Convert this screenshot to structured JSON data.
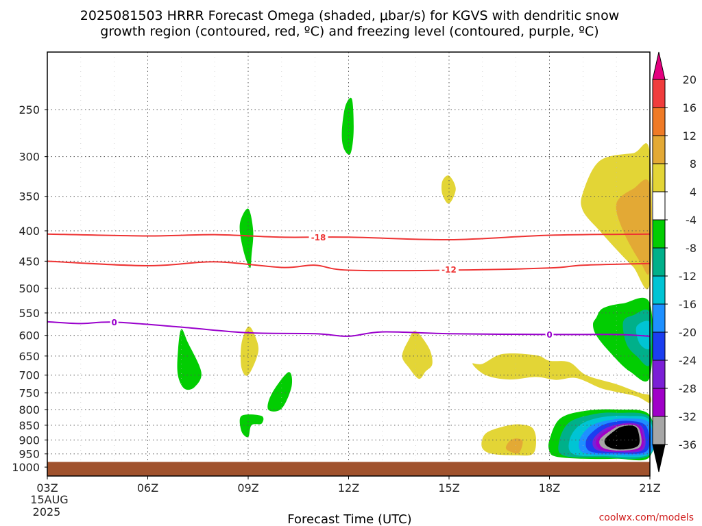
{
  "chart_data": {
    "type": "contour",
    "title_line1": "2025081503 HRRR Forecast Omega (shaded, μbar/s) for KGVS with dendritic snow",
    "title_line2": "growth region (contoured, red, ºC) and freezing level (contoured, purple, ºC)",
    "xlabel": "Forecast Time (UTC)",
    "x_ticks": [
      "03Z",
      "06Z",
      "09Z",
      "12Z",
      "15Z",
      "18Z",
      "21Z"
    ],
    "x_hours": [
      3,
      6,
      9,
      12,
      15,
      18,
      21
    ],
    "xlim_hours": [
      3,
      21
    ],
    "date_line1": "15AUG",
    "date_line2": "2025",
    "y_ticks": [
      250,
      300,
      350,
      400,
      450,
      500,
      550,
      600,
      650,
      700,
      750,
      800,
      850,
      900,
      950,
      1000
    ],
    "ylim_hpa": [
      1035,
      200
    ],
    "y_scale": "log",
    "ground_hpa": 980,
    "colorbar": {
      "labels": [
        "20",
        "16",
        "12",
        "8",
        "4",
        "-4",
        "-8",
        "-12",
        "-16",
        "-20",
        "-24",
        "-28",
        "-32",
        "-36"
      ],
      "colors": [
        "#e4007f",
        "#f03c3c",
        "#ef7a26",
        "#e3a935",
        "#e3d536",
        "#ffffff",
        "#02cd02",
        "#00b08a",
        "#00c4d4",
        "#1e90ff",
        "#1b3ef0",
        "#7b1fd6",
        "#a000c8",
        "#a6a6a6",
        "#000000"
      ]
    },
    "isotherms": [
      {
        "label": "-18",
        "color": "#ee3333",
        "points": [
          [
            3,
            405
          ],
          [
            6,
            408
          ],
          [
            8,
            406
          ],
          [
            10,
            410
          ],
          [
            12,
            410
          ],
          [
            15,
            414
          ],
          [
            18,
            407
          ],
          [
            21,
            405
          ]
        ],
        "label_at": [
          11.1,
          410
        ]
      },
      {
        "label": "-12",
        "color": "#ee3333",
        "points": [
          [
            3,
            450
          ],
          [
            6,
            458
          ],
          [
            8,
            451
          ],
          [
            10,
            461
          ],
          [
            11,
            457
          ],
          [
            12,
            466
          ],
          [
            15,
            466
          ],
          [
            18,
            462
          ],
          [
            19,
            457
          ],
          [
            21,
            454
          ]
        ],
        "label_at": [
          15,
          465
        ]
      },
      {
        "label": "0",
        "color": "#9900cc",
        "points": [
          [
            3,
            569
          ],
          [
            4,
            573
          ],
          [
            5,
            570
          ],
          [
            7,
            581
          ],
          [
            9,
            594
          ],
          [
            11,
            596
          ],
          [
            12,
            602
          ],
          [
            13,
            592
          ],
          [
            15,
            596
          ],
          [
            18,
            598
          ],
          [
            20,
            598
          ],
          [
            21,
            602
          ]
        ],
        "label_at": [
          5,
          570
        ]
      },
      {
        "label": "0",
        "color": "#9900cc",
        "points": [],
        "label_at": [
          18,
          598
        ]
      }
    ],
    "omega_regions": [
      {
        "value_range": [
          -8,
          -4
        ],
        "color": "#02cd02",
        "points": [
          [
            11.8,
            272
          ],
          [
            11.9,
            247
          ],
          [
            12.1,
            240
          ],
          [
            12.15,
            272
          ],
          [
            12.05,
            297
          ],
          [
            11.85,
            290
          ]
        ]
      },
      {
        "value_range": [
          -8,
          -4
        ],
        "color": "#02cd02",
        "points": [
          [
            8.75,
            390
          ],
          [
            9.0,
            367
          ],
          [
            9.15,
            400
          ],
          [
            9.1,
            440
          ],
          [
            9.05,
            462
          ],
          [
            8.85,
            430
          ]
        ]
      },
      {
        "value_range": [
          -8,
          -4
        ],
        "color": "#02cd02",
        "points": [
          [
            6.9,
            640
          ],
          [
            7.0,
            586
          ],
          [
            7.2,
            617
          ],
          [
            7.6,
            692
          ],
          [
            7.4,
            733
          ],
          [
            7.1,
            738
          ],
          [
            6.9,
            700
          ]
        ]
      },
      {
        "value_range": [
          -8,
          -4
        ],
        "color": "#02cd02",
        "points": [
          [
            9.6,
            800
          ],
          [
            9.7,
            753
          ],
          [
            10.2,
            692
          ],
          [
            10.3,
            730
          ],
          [
            10.0,
            797
          ]
        ]
      },
      {
        "value_range": [
          -8,
          -4
        ],
        "color": "#02cd02",
        "points": [
          [
            8.8,
            820
          ],
          [
            9.4,
            820
          ],
          [
            9.4,
            845
          ],
          [
            9.1,
            850
          ],
          [
            9.0,
            890
          ],
          [
            8.8,
            870
          ]
        ]
      },
      {
        "value_range": [
          4,
          8
        ],
        "color": "#e3d536",
        "points": [
          [
            8.8,
            620
          ],
          [
            9.0,
            580
          ],
          [
            9.2,
            600
          ],
          [
            9.3,
            640
          ],
          [
            9.0,
            700
          ],
          [
            8.8,
            680
          ]
        ]
      },
      {
        "value_range": [
          4,
          8
        ],
        "color": "#e3d536",
        "points": [
          [
            14.0,
            590
          ],
          [
            14.4,
            630
          ],
          [
            14.5,
            670
          ],
          [
            14.3,
            690
          ],
          [
            14.1,
            710
          ],
          [
            13.8,
            680
          ],
          [
            13.6,
            650
          ],
          [
            13.8,
            610
          ]
        ]
      },
      {
        "value_range": [
          4,
          8
        ],
        "color": "#e3d536",
        "points": [
          [
            14.8,
            330
          ],
          [
            15.0,
            323
          ],
          [
            15.2,
            340
          ],
          [
            15.0,
            360
          ],
          [
            14.8,
            347
          ]
        ]
      },
      {
        "value_range": [
          4,
          8
        ],
        "color": "#e3d536",
        "points": [
          [
            16.0,
            670
          ],
          [
            16.6,
            645
          ],
          [
            17.6,
            648
          ],
          [
            18.0,
            662
          ],
          [
            18.6,
            666
          ],
          [
            19.1,
            700
          ],
          [
            20.0,
            725
          ],
          [
            20.7,
            750
          ],
          [
            21.0,
            757
          ],
          [
            21.0,
            780
          ],
          [
            20.6,
            760
          ],
          [
            19.9,
            745
          ],
          [
            19.5,
            735
          ],
          [
            18.8,
            708
          ],
          [
            18.2,
            713
          ],
          [
            17.6,
            705
          ],
          [
            16.8,
            712
          ],
          [
            16.1,
            700
          ],
          [
            15.7,
            670
          ]
        ]
      },
      {
        "value_range": [
          4,
          8
        ],
        "color": "#e3d536",
        "points": [
          [
            16.2,
            870
          ],
          [
            16.8,
            850
          ],
          [
            17.2,
            848
          ],
          [
            17.5,
            860
          ],
          [
            17.6,
            900
          ],
          [
            17.5,
            950
          ],
          [
            17.0,
            955
          ],
          [
            16.3,
            950
          ],
          [
            16.0,
            930
          ],
          [
            16.0,
            895
          ]
        ]
      },
      {
        "value_range": [
          8,
          12
        ],
        "color": "#e3a935",
        "points": [
          [
            16.8,
            905
          ],
          [
            17.0,
            895
          ],
          [
            17.2,
            905
          ],
          [
            17.1,
            945
          ],
          [
            16.9,
            945
          ],
          [
            16.7,
            930
          ]
        ]
      },
      {
        "value_range": [
          4,
          8
        ],
        "color": "#e3d536",
        "points": [
          [
            19.0,
            345
          ],
          [
            19.5,
            305
          ],
          [
            20.5,
            296
          ],
          [
            21.0,
            296
          ],
          [
            21.0,
            490
          ],
          [
            20.5,
            460
          ],
          [
            20.0,
            430
          ],
          [
            19.5,
            400
          ],
          [
            19.0,
            370
          ]
        ]
      },
      {
        "value_range": [
          8,
          12
        ],
        "color": "#e3a935",
        "points": [
          [
            20.0,
            360
          ],
          [
            20.5,
            340
          ],
          [
            21.0,
            335
          ],
          [
            21.0,
            465
          ],
          [
            20.7,
            450
          ],
          [
            20.2,
            400
          ]
        ]
      },
      {
        "value_range": [
          -8,
          -4
        ],
        "color": "#02cd02",
        "points": [
          [
            19.4,
            560
          ],
          [
            19.6,
            540
          ],
          [
            20.2,
            530
          ],
          [
            21.0,
            530
          ],
          [
            21.0,
            705
          ],
          [
            20.4,
            690
          ],
          [
            19.8,
            640
          ],
          [
            19.4,
            600
          ],
          [
            19.3,
            575
          ]
        ]
      },
      {
        "value_range": [
          -12,
          -8
        ],
        "color": "#00b08a",
        "points": [
          [
            20.2,
            570
          ],
          [
            20.5,
            555
          ],
          [
            21.0,
            550
          ],
          [
            21.0,
            670
          ],
          [
            20.6,
            650
          ],
          [
            20.3,
            620
          ]
        ]
      },
      {
        "value_range": [
          -16,
          -12
        ],
        "color": "#00c4d4",
        "points": [
          [
            20.6,
            580
          ],
          [
            21.0,
            570
          ],
          [
            21.0,
            630
          ],
          [
            20.7,
            620
          ]
        ]
      },
      {
        "value_range": [
          -8,
          -4
        ],
        "color": "#02cd02",
        "points": [
          [
            18.0,
            900
          ],
          [
            18.3,
            830
          ],
          [
            19.0,
            805
          ],
          [
            20.0,
            800
          ],
          [
            21.0,
            818
          ],
          [
            21.0,
            960
          ],
          [
            20.0,
            968
          ],
          [
            19.0,
            968
          ],
          [
            18.2,
            960
          ],
          [
            18.0,
            940
          ]
        ]
      },
      {
        "value_range": [
          -12,
          -8
        ],
        "color": "#00b08a",
        "points": [
          [
            18.3,
            900
          ],
          [
            18.6,
            840
          ],
          [
            19.3,
            815
          ],
          [
            20.0,
            810
          ],
          [
            21.0,
            825
          ],
          [
            21.0,
            955
          ],
          [
            19.5,
            963
          ],
          [
            18.4,
            955
          ]
        ]
      },
      {
        "value_range": [
          -16,
          -12
        ],
        "color": "#00c4d4",
        "points": [
          [
            18.6,
            900
          ],
          [
            18.9,
            850
          ],
          [
            19.5,
            825
          ],
          [
            20.3,
            820
          ],
          [
            21.0,
            835
          ],
          [
            21.0,
            950
          ],
          [
            19.6,
            958
          ],
          [
            18.7,
            950
          ]
        ]
      },
      {
        "value_range": [
          -20,
          -16
        ],
        "color": "#1e90ff",
        "points": [
          [
            18.9,
            900
          ],
          [
            19.2,
            855
          ],
          [
            19.7,
            835
          ],
          [
            20.4,
            828
          ],
          [
            21.0,
            845
          ],
          [
            21.0,
            945
          ],
          [
            19.8,
            953
          ],
          [
            19.0,
            945
          ]
        ]
      },
      {
        "value_range": [
          -24,
          -20
        ],
        "color": "#1b3ef0",
        "points": [
          [
            19.1,
            900
          ],
          [
            19.4,
            862
          ],
          [
            19.8,
            842
          ],
          [
            20.4,
            836
          ],
          [
            20.9,
            855
          ],
          [
            20.9,
            940
          ],
          [
            19.9,
            948
          ],
          [
            19.2,
            940
          ]
        ]
      },
      {
        "value_range": [
          -28,
          -24
        ],
        "color": "#7b1fd6",
        "points": [
          [
            19.3,
            900
          ],
          [
            19.6,
            865
          ],
          [
            20.0,
            848
          ],
          [
            20.5,
            843
          ],
          [
            20.8,
            862
          ],
          [
            20.8,
            935
          ],
          [
            20.0,
            944
          ],
          [
            19.4,
            935
          ]
        ]
      },
      {
        "value_range": [
          -32,
          -28
        ],
        "color": "#a000c8",
        "points": [
          [
            19.4,
            900
          ],
          [
            19.7,
            868
          ],
          [
            20.05,
            850
          ],
          [
            20.5,
            846
          ],
          [
            20.75,
            865
          ],
          [
            20.75,
            930
          ],
          [
            20.05,
            941
          ],
          [
            19.5,
            932
          ]
        ]
      },
      {
        "value_range": [
          -36,
          -32
        ],
        "color": "#a6a6a6",
        "points": [
          [
            19.5,
            900
          ],
          [
            19.8,
            870
          ],
          [
            20.1,
            852
          ],
          [
            20.5,
            849
          ],
          [
            20.7,
            868
          ],
          [
            20.7,
            925
          ],
          [
            20.1,
            938
          ],
          [
            19.6,
            928
          ]
        ]
      },
      {
        "value_range": [
          -40,
          -36
        ],
        "color": "#000000",
        "points": [
          [
            19.65,
            900
          ],
          [
            19.9,
            872
          ],
          [
            20.15,
            855
          ],
          [
            20.5,
            852
          ],
          [
            20.65,
            870
          ],
          [
            20.65,
            920
          ],
          [
            20.15,
            934
          ],
          [
            19.75,
            924
          ]
        ]
      }
    ]
  },
  "credit": "coolwx.com/models"
}
